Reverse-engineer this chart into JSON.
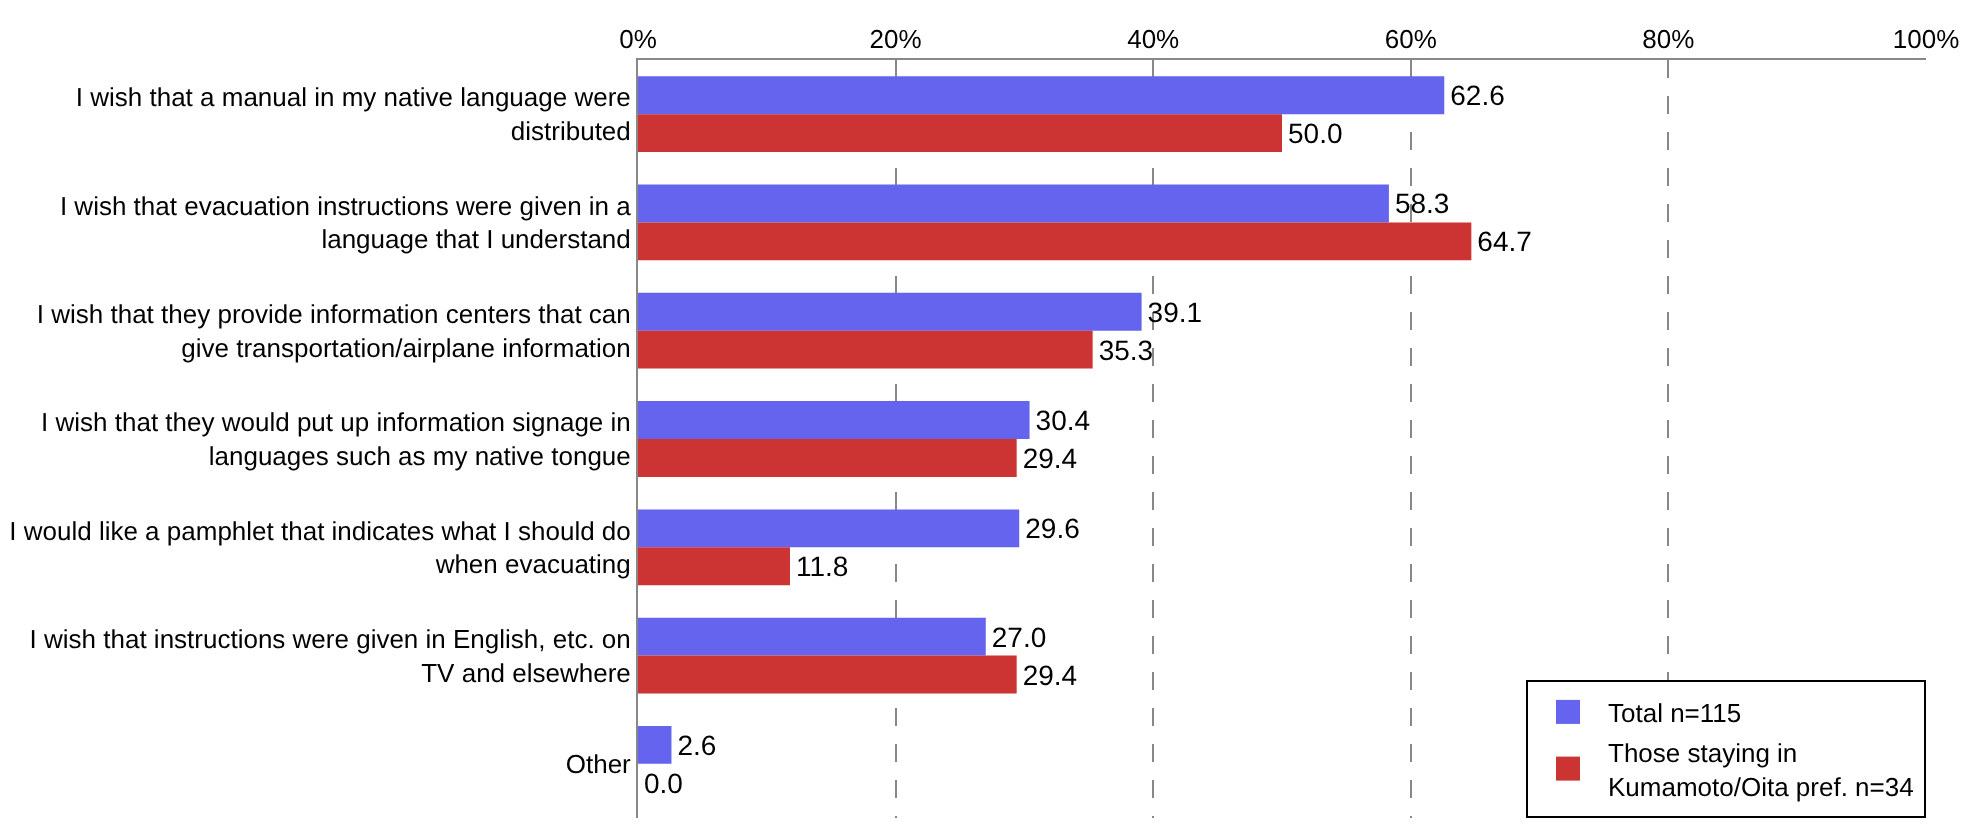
{
  "chart_data": {
    "type": "bar",
    "orientation": "horizontal",
    "categories": [
      "I wish that a manual in my native language were distributed",
      "I wish that evacuation instructions were given in a language that I understand",
      "I wish that they provide information centers that can give transportation/airplane information",
      "I wish that they would put up information signage in languages such as my native tongue",
      "I would like a pamphlet that indicates what I should do when evacuating",
      "I wish that instructions were given in English, etc. on TV and elsewhere",
      "Other"
    ],
    "series": [
      {
        "name": "Total n=115",
        "color": "#6464ee",
        "values": [
          62.6,
          58.3,
          39.1,
          30.4,
          29.6,
          27.0,
          2.6
        ],
        "value_labels": [
          "62.6",
          "58.3",
          "39.1",
          "30.4",
          "29.6",
          "27.0",
          "2.6"
        ]
      },
      {
        "name": "Those staying in Kumamoto/Oita pref. n=34",
        "color": "#cc3333",
        "values": [
          50.0,
          64.7,
          35.3,
          29.4,
          11.8,
          29.4,
          0.0
        ],
        "value_labels": [
          "50.0",
          "64.7",
          "35.3",
          "29.4",
          "11.8",
          "29.4",
          "0.0"
        ]
      }
    ],
    "xlim": [
      0,
      100
    ],
    "xticks": [
      {
        "value": 0,
        "label": "0%"
      },
      {
        "value": 20,
        "label": "20%"
      },
      {
        "value": 40,
        "label": "40%"
      },
      {
        "value": 60,
        "label": "60%"
      },
      {
        "value": 80,
        "label": "80%"
      },
      {
        "value": 100,
        "label": "100%"
      }
    ],
    "grid": "x",
    "legend": "bottom right"
  }
}
